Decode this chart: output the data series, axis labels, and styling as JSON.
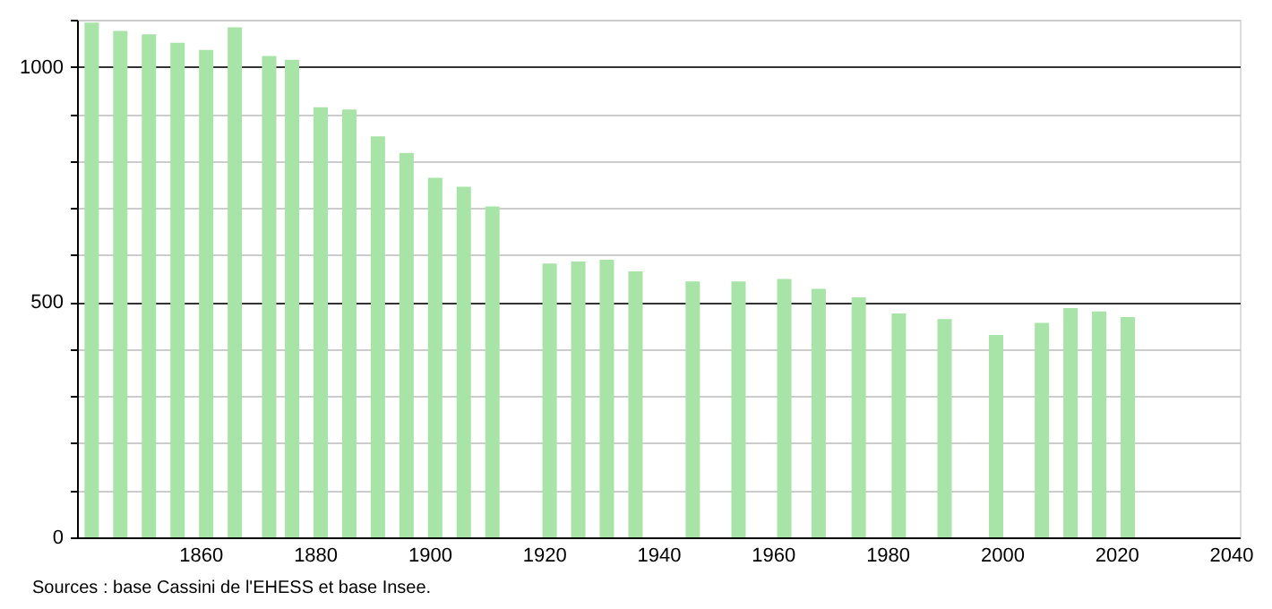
{
  "chart_data": {
    "type": "bar",
    "x": [
      1841,
      1846,
      1851,
      1856,
      1861,
      1866,
      1872,
      1876,
      1881,
      1886,
      1891,
      1896,
      1901,
      1906,
      1911,
      1921,
      1926,
      1931,
      1936,
      1946,
      1954,
      1962,
      1968,
      1975,
      1982,
      1990,
      1999,
      2007,
      2012,
      2017,
      2022
    ],
    "values": [
      1094,
      1076,
      1069,
      1051,
      1036,
      1084,
      1023,
      1015,
      914,
      909,
      852,
      817,
      764,
      745,
      703,
      582,
      586,
      590,
      565,
      544,
      544,
      549,
      528,
      510,
      476,
      464,
      430,
      456,
      487,
      480,
      468
    ],
    "color": "#a8e4a8",
    "xlim": [
      1840,
      2040
    ],
    "xticks": [
      1860,
      1880,
      1900,
      1920,
      1940,
      1960,
      1980,
      2000,
      2020,
      2040
    ],
    "ylim": [
      0,
      1100
    ],
    "yticks": [
      0,
      {
        "value": 100,
        "label": null
      },
      {
        "value": 200,
        "label": null
      },
      {
        "value": 300,
        "label": null
      },
      {
        "value": 400,
        "label": null
      },
      500,
      {
        "value": 600,
        "label": null
      },
      {
        "value": 700,
        "label": null
      },
      {
        "value": 800,
        "label": null
      },
      {
        "value": 900,
        "label": null
      },
      1000,
      {
        "value": 1100,
        "label": null
      }
    ],
    "grid": "y",
    "annotations": [
      "Sources : base Cassini de l'EHESS et base Insee."
    ]
  }
}
